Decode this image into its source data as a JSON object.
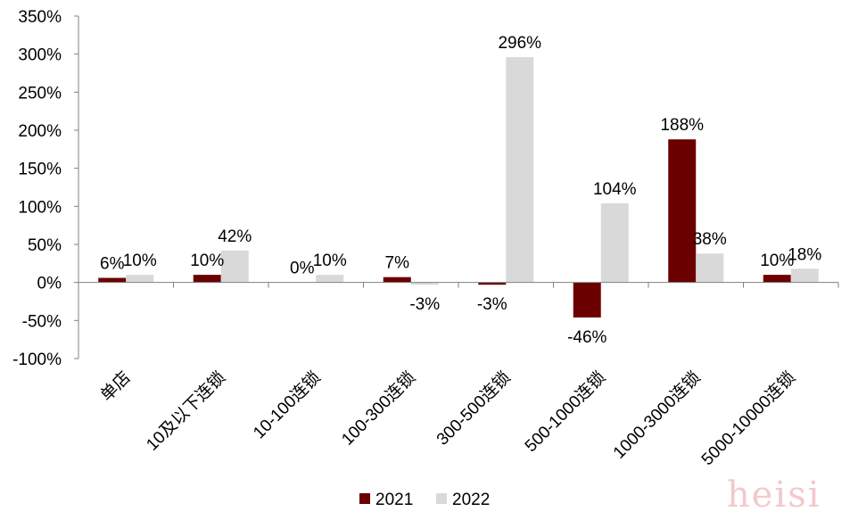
{
  "chart_data": {
    "type": "bar",
    "categories": [
      "单店",
      "10及以下连锁",
      "10-100连锁",
      "100-300连锁",
      "300-500连锁",
      "500-1000连锁",
      "1000-3000连锁",
      "5000-10000连锁"
    ],
    "series": [
      {
        "name": "2021",
        "color": "#6b0000",
        "values": [
          6,
          10,
          0,
          7,
          -3,
          -46,
          188,
          10
        ],
        "labels": [
          "6%",
          "10%",
          "0%",
          "7%",
          "-3%",
          "-46%",
          "188%",
          "10%"
        ]
      },
      {
        "name": "2022",
        "color": "#d9d9d9",
        "values": [
          10,
          42,
          10,
          -3,
          296,
          104,
          38,
          18
        ],
        "labels": [
          "10%",
          "42%",
          "10%",
          "-3%",
          "296%",
          "104%",
          "38%",
          "18%"
        ]
      }
    ],
    "ylim": [
      -100,
      350
    ],
    "yticks": [
      -100,
      -50,
      0,
      50,
      100,
      150,
      200,
      250,
      300,
      350
    ],
    "ytick_labels": [
      "-100%",
      "-50%",
      "0%",
      "50%",
      "100%",
      "150%",
      "200%",
      "250%",
      "300%",
      "350%"
    ],
    "legend_position": "bottom",
    "grid": false
  },
  "watermark": "heisi"
}
